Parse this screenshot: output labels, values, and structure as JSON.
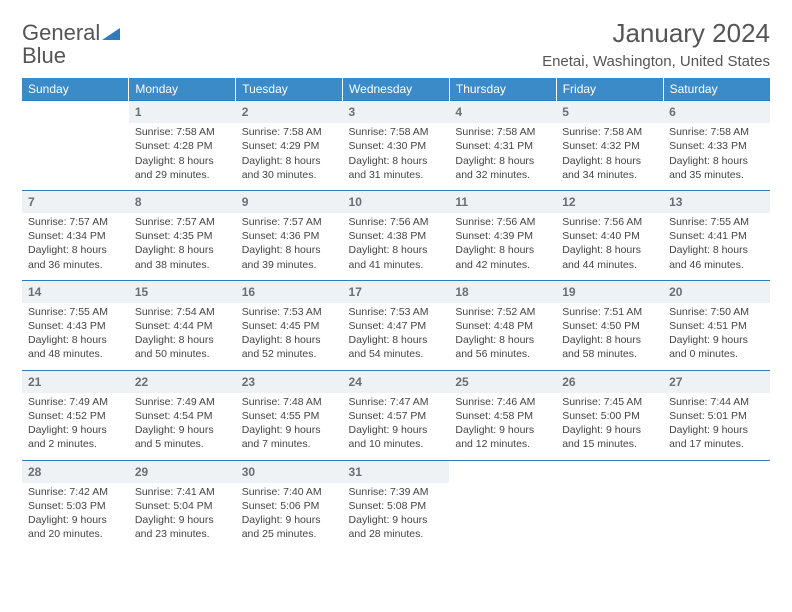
{
  "brand": {
    "part1": "General",
    "part2": "Blue"
  },
  "title": "January 2024",
  "location": "Enetai, Washington, United States",
  "header_bg": "#3b8bc9",
  "accent": "#2f7bbf",
  "daynum_bg": "#eef2f5",
  "days_of_week": [
    "Sunday",
    "Monday",
    "Tuesday",
    "Wednesday",
    "Thursday",
    "Friday",
    "Saturday"
  ],
  "weeks": [
    [
      {
        "n": "",
        "lines": []
      },
      {
        "n": "1",
        "lines": [
          "Sunrise: 7:58 AM",
          "Sunset: 4:28 PM",
          "Daylight: 8 hours and 29 minutes."
        ]
      },
      {
        "n": "2",
        "lines": [
          "Sunrise: 7:58 AM",
          "Sunset: 4:29 PM",
          "Daylight: 8 hours and 30 minutes."
        ]
      },
      {
        "n": "3",
        "lines": [
          "Sunrise: 7:58 AM",
          "Sunset: 4:30 PM",
          "Daylight: 8 hours and 31 minutes."
        ]
      },
      {
        "n": "4",
        "lines": [
          "Sunrise: 7:58 AM",
          "Sunset: 4:31 PM",
          "Daylight: 8 hours and 32 minutes."
        ]
      },
      {
        "n": "5",
        "lines": [
          "Sunrise: 7:58 AM",
          "Sunset: 4:32 PM",
          "Daylight: 8 hours and 34 minutes."
        ]
      },
      {
        "n": "6",
        "lines": [
          "Sunrise: 7:58 AM",
          "Sunset: 4:33 PM",
          "Daylight: 8 hours and 35 minutes."
        ]
      }
    ],
    [
      {
        "n": "7",
        "lines": [
          "Sunrise: 7:57 AM",
          "Sunset: 4:34 PM",
          "Daylight: 8 hours and 36 minutes."
        ]
      },
      {
        "n": "8",
        "lines": [
          "Sunrise: 7:57 AM",
          "Sunset: 4:35 PM",
          "Daylight: 8 hours and 38 minutes."
        ]
      },
      {
        "n": "9",
        "lines": [
          "Sunrise: 7:57 AM",
          "Sunset: 4:36 PM",
          "Daylight: 8 hours and 39 minutes."
        ]
      },
      {
        "n": "10",
        "lines": [
          "Sunrise: 7:56 AM",
          "Sunset: 4:38 PM",
          "Daylight: 8 hours and 41 minutes."
        ]
      },
      {
        "n": "11",
        "lines": [
          "Sunrise: 7:56 AM",
          "Sunset: 4:39 PM",
          "Daylight: 8 hours and 42 minutes."
        ]
      },
      {
        "n": "12",
        "lines": [
          "Sunrise: 7:56 AM",
          "Sunset: 4:40 PM",
          "Daylight: 8 hours and 44 minutes."
        ]
      },
      {
        "n": "13",
        "lines": [
          "Sunrise: 7:55 AM",
          "Sunset: 4:41 PM",
          "Daylight: 8 hours and 46 minutes."
        ]
      }
    ],
    [
      {
        "n": "14",
        "lines": [
          "Sunrise: 7:55 AM",
          "Sunset: 4:43 PM",
          "Daylight: 8 hours and 48 minutes."
        ]
      },
      {
        "n": "15",
        "lines": [
          "Sunrise: 7:54 AM",
          "Sunset: 4:44 PM",
          "Daylight: 8 hours and 50 minutes."
        ]
      },
      {
        "n": "16",
        "lines": [
          "Sunrise: 7:53 AM",
          "Sunset: 4:45 PM",
          "Daylight: 8 hours and 52 minutes."
        ]
      },
      {
        "n": "17",
        "lines": [
          "Sunrise: 7:53 AM",
          "Sunset: 4:47 PM",
          "Daylight: 8 hours and 54 minutes."
        ]
      },
      {
        "n": "18",
        "lines": [
          "Sunrise: 7:52 AM",
          "Sunset: 4:48 PM",
          "Daylight: 8 hours and 56 minutes."
        ]
      },
      {
        "n": "19",
        "lines": [
          "Sunrise: 7:51 AM",
          "Sunset: 4:50 PM",
          "Daylight: 8 hours and 58 minutes."
        ]
      },
      {
        "n": "20",
        "lines": [
          "Sunrise: 7:50 AM",
          "Sunset: 4:51 PM",
          "Daylight: 9 hours and 0 minutes."
        ]
      }
    ],
    [
      {
        "n": "21",
        "lines": [
          "Sunrise: 7:49 AM",
          "Sunset: 4:52 PM",
          "Daylight: 9 hours and 2 minutes."
        ]
      },
      {
        "n": "22",
        "lines": [
          "Sunrise: 7:49 AM",
          "Sunset: 4:54 PM",
          "Daylight: 9 hours and 5 minutes."
        ]
      },
      {
        "n": "23",
        "lines": [
          "Sunrise: 7:48 AM",
          "Sunset: 4:55 PM",
          "Daylight: 9 hours and 7 minutes."
        ]
      },
      {
        "n": "24",
        "lines": [
          "Sunrise: 7:47 AM",
          "Sunset: 4:57 PM",
          "Daylight: 9 hours and 10 minutes."
        ]
      },
      {
        "n": "25",
        "lines": [
          "Sunrise: 7:46 AM",
          "Sunset: 4:58 PM",
          "Daylight: 9 hours and 12 minutes."
        ]
      },
      {
        "n": "26",
        "lines": [
          "Sunrise: 7:45 AM",
          "Sunset: 5:00 PM",
          "Daylight: 9 hours and 15 minutes."
        ]
      },
      {
        "n": "27",
        "lines": [
          "Sunrise: 7:44 AM",
          "Sunset: 5:01 PM",
          "Daylight: 9 hours and 17 minutes."
        ]
      }
    ],
    [
      {
        "n": "28",
        "lines": [
          "Sunrise: 7:42 AM",
          "Sunset: 5:03 PM",
          "Daylight: 9 hours and 20 minutes."
        ]
      },
      {
        "n": "29",
        "lines": [
          "Sunrise: 7:41 AM",
          "Sunset: 5:04 PM",
          "Daylight: 9 hours and 23 minutes."
        ]
      },
      {
        "n": "30",
        "lines": [
          "Sunrise: 7:40 AM",
          "Sunset: 5:06 PM",
          "Daylight: 9 hours and 25 minutes."
        ]
      },
      {
        "n": "31",
        "lines": [
          "Sunrise: 7:39 AM",
          "Sunset: 5:08 PM",
          "Daylight: 9 hours and 28 minutes."
        ]
      },
      {
        "n": "",
        "lines": []
      },
      {
        "n": "",
        "lines": []
      },
      {
        "n": "",
        "lines": []
      }
    ]
  ]
}
